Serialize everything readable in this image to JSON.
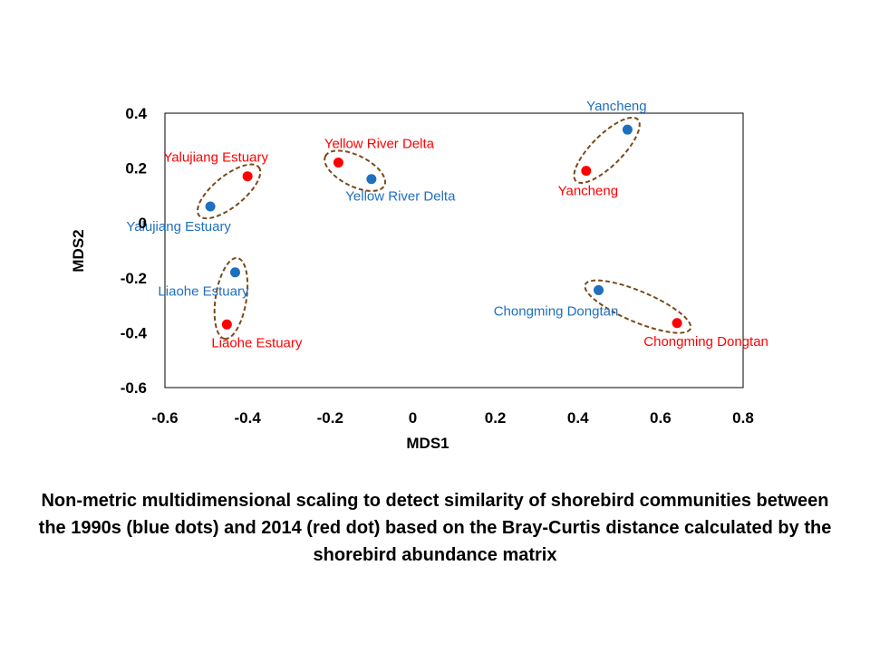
{
  "chart_data": {
    "type": "scatter",
    "title": "",
    "xlabel": "MDS1",
    "ylabel": "MDS2",
    "xlim": [
      -0.6,
      0.8
    ],
    "ylim": [
      -0.6,
      0.4
    ],
    "x_ticks": [
      "-0.6",
      "-0.4",
      "-0.2",
      "0",
      "0.2",
      "0.4",
      "0.6",
      "0.8"
    ],
    "y_ticks": [
      "0.4",
      "0.2",
      "0",
      "-0.2",
      "-0.4",
      "-0.6"
    ],
    "grid": false,
    "series": [
      {
        "color": "#1f6fbf",
        "points": [
          {
            "label": "Yalujiang Estuary",
            "x": -0.49,
            "y": 0.06
          },
          {
            "label": "Yellow River Delta",
            "x": -0.1,
            "y": 0.16
          },
          {
            "label": "Yancheng",
            "x": 0.52,
            "y": 0.34
          },
          {
            "label": "Liaohe Estuary",
            "x": -0.43,
            "y": -0.18
          },
          {
            "label": "Chongming Dongtan",
            "x": 0.45,
            "y": -0.245
          }
        ]
      },
      {
        "color": "#ff0000",
        "points": [
          {
            "label": "Yalujiang Estuary",
            "x": -0.4,
            "y": 0.17
          },
          {
            "label": "Yellow River Delta",
            "x": -0.18,
            "y": 0.22
          },
          {
            "label": "Yancheng",
            "x": 0.42,
            "y": 0.19
          },
          {
            "label": "Liaohe Estuary",
            "x": -0.45,
            "y": -0.37
          },
          {
            "label": "Chongming Dongtan",
            "x": 0.64,
            "y": -0.365
          }
        ]
      }
    ],
    "ellipse_color": "#7a4a1a"
  },
  "caption": "Non-metric multidimensional scaling to detect similarity of shorebird communities between the 1990s (blue dots) and 2014 (red dot) based on the Bray-Curtis distance calculated by the shorebird abundance matrix"
}
